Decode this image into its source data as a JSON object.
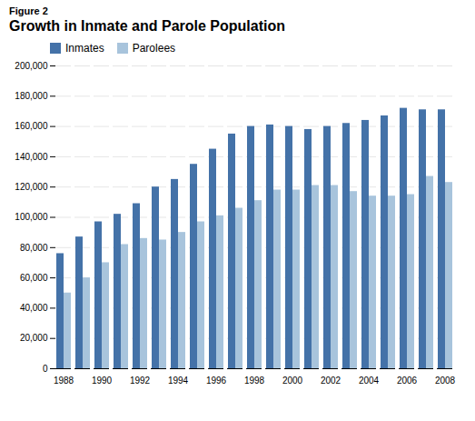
{
  "chart_data": {
    "type": "bar",
    "title": "Growth in Inmate and Parole Population",
    "subtitle": "Figure 2",
    "categories": [
      "1988",
      null,
      "1990",
      null,
      "1992",
      null,
      "1994",
      null,
      "1996",
      null,
      "1998",
      null,
      "2000",
      null,
      "2002",
      null,
      "2004",
      null,
      "2006",
      null,
      "2008"
    ],
    "series": [
      {
        "name": "Inmates",
        "color": "#4472A8",
        "values": [
          76000,
          87000,
          97000,
          102000,
          109000,
          120000,
          125000,
          135000,
          145000,
          155000,
          160000,
          161000,
          160000,
          158000,
          160000,
          162000,
          164000,
          167000,
          172000,
          171000,
          171000
        ]
      },
      {
        "name": "Parolees",
        "color": "#A8C4DC",
        "values": [
          50000,
          60000,
          70000,
          82000,
          86000,
          85000,
          90000,
          97000,
          101000,
          106000,
          111000,
          118000,
          118000,
          121000,
          121000,
          117000,
          114000,
          114000,
          115000,
          127000,
          123000
        ]
      }
    ],
    "ylim": [
      0,
      200000
    ],
    "yticks": [
      0,
      {
        "value": 20000,
        "label": "20,000"
      },
      {
        "value": 40000,
        "label": "40,000"
      },
      {
        "value": 60000,
        "label": "60,000"
      },
      {
        "value": 80000,
        "label": "80,000"
      },
      {
        "value": 100000,
        "label": "100,000"
      },
      {
        "value": 120000,
        "label": "120,000"
      },
      {
        "value": 140000,
        "label": "140,000"
      },
      {
        "value": 160000,
        "label": "160,000"
      },
      {
        "value": 180000,
        "label": "180,000"
      },
      {
        "value": 200000,
        "label": "200,000"
      }
    ],
    "grid": true,
    "legend": "upper left"
  }
}
